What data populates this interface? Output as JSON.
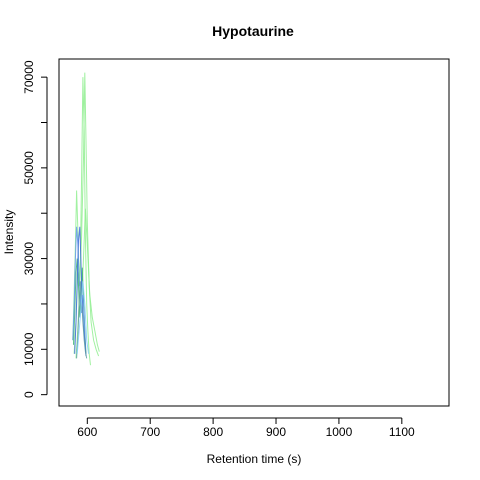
{
  "chart_data": {
    "type": "line",
    "title": "Hypotaurine",
    "xlabel": "Retention time (s)",
    "ylabel": "Intensity",
    "xlim": [
      555,
      1175
    ],
    "ylim": [
      -2500,
      74000
    ],
    "xticks": [
      600,
      700,
      800,
      900,
      1000,
      1100
    ],
    "yticks": [
      0,
      10000,
      30000,
      50000,
      70000
    ],
    "ytick_minor": [
      20000,
      40000,
      60000
    ],
    "grid": false,
    "legend": "none",
    "series": [
      {
        "color": "#90EE90",
        "x": [
          577,
          579,
          581,
          583,
          585,
          587,
          589,
          591,
          593,
          595,
          597,
          599,
          601,
          603,
          605
        ],
        "y": [
          12000,
          22000,
          33000,
          45000,
          36000,
          24000,
          30000,
          48000,
          70000,
          58000,
          35000,
          20000,
          14000,
          9000,
          6500
        ]
      },
      {
        "color": "#90EE90",
        "x": [
          579,
          582,
          585,
          588,
          591,
          594,
          596,
          598,
          600,
          603,
          606,
          610,
          614,
          618
        ],
        "y": [
          9000,
          16000,
          27000,
          24000,
          35000,
          52000,
          71000,
          56000,
          38000,
          24000,
          16000,
          12000,
          10000,
          8500
        ]
      },
      {
        "color": "#90EE90",
        "x": [
          582,
          585,
          588,
          591,
          594,
          597,
          600,
          604,
          608,
          612,
          616,
          619
        ],
        "y": [
          8000,
          15000,
          23000,
          21000,
          30000,
          41000,
          33000,
          22000,
          17000,
          14000,
          11000,
          9500
        ]
      },
      {
        "color": "#3CB371",
        "x": [
          578,
          580,
          582,
          584,
          586,
          588,
          590,
          592,
          594,
          596,
          598
        ],
        "y": [
          11000,
          18000,
          27000,
          30000,
          24000,
          17000,
          22000,
          28000,
          21000,
          14000,
          9000
        ]
      },
      {
        "color": "#6495ED",
        "x": [
          577,
          579,
          581,
          583,
          585,
          587,
          589,
          591,
          593,
          595,
          597
        ],
        "y": [
          12000,
          19000,
          30000,
          37000,
          33000,
          26000,
          21000,
          18000,
          22000,
          17000,
          10000
        ]
      },
      {
        "color": "#4169E1",
        "x": [
          580,
          582,
          584,
          586,
          588,
          590,
          592,
          594,
          596,
          598
        ],
        "y": [
          9000,
          16000,
          25000,
          34000,
          37000,
          29000,
          20000,
          15000,
          12000,
          8500
        ]
      },
      {
        "color": "#5F9EA0",
        "x": [
          583,
          585,
          587,
          589,
          591,
          593,
          595,
          597,
          599
        ],
        "y": [
          8000,
          13000,
          20000,
          25000,
          21000,
          16000,
          12000,
          9500,
          8000
        ]
      },
      {
        "color": "#87CEFA",
        "x": [
          584,
          587,
          590,
          593,
          596,
          599,
          602
        ],
        "y": [
          9000,
          14000,
          19000,
          25000,
          20000,
          12000,
          9000
        ]
      }
    ]
  }
}
